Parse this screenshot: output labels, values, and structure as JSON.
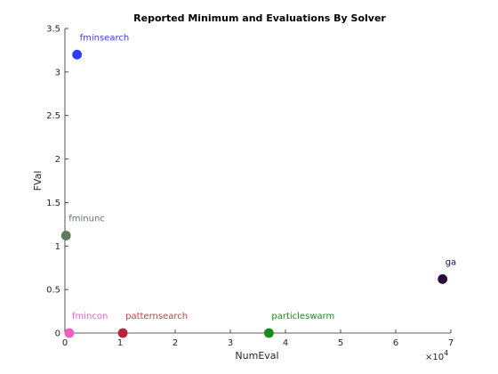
{
  "chart_data": {
    "type": "scatter",
    "title": "Reported Minimum and Evaluations By Solver",
    "xlabel": "NumEval",
    "ylabel": "FVal",
    "x_multiplier_base": "×10",
    "x_multiplier_exp": "4",
    "xlim": [
      0,
      7
    ],
    "ylim": [
      0,
      3.5
    ],
    "x_ticks": [
      "0",
      "1",
      "2",
      "3",
      "4",
      "5",
      "6",
      "7"
    ],
    "y_ticks": [
      "0",
      "0.5",
      "1",
      "1.5",
      "2",
      "2.5",
      "3",
      "3.5"
    ],
    "points": [
      {
        "name": "fminsearch",
        "x": 0.22,
        "y": 3.2,
        "color": "#2f3bff",
        "label_color": "#3b3bd9"
      },
      {
        "name": "fminunc",
        "x": 0.02,
        "y": 1.12,
        "color": "#5c7a5c",
        "label_color": "#5c7a5c"
      },
      {
        "name": "ga",
        "x": 6.85,
        "y": 0.62,
        "color": "#2a0a3a",
        "label_color": "#2a0a3a"
      },
      {
        "name": "fmincon",
        "x": 0.08,
        "y": 0.0,
        "color": "#f25ec6",
        "label_color": "#f25ec6"
      },
      {
        "name": "patternsearch",
        "x": 1.05,
        "y": 0.0,
        "color": "#b8243c",
        "label_color": "#c0404e"
      },
      {
        "name": "particleswarm",
        "x": 3.7,
        "y": 0.0,
        "color": "#1a8c1a",
        "label_color": "#1a8c1a"
      }
    ],
    "grid": false,
    "legend": "none"
  }
}
